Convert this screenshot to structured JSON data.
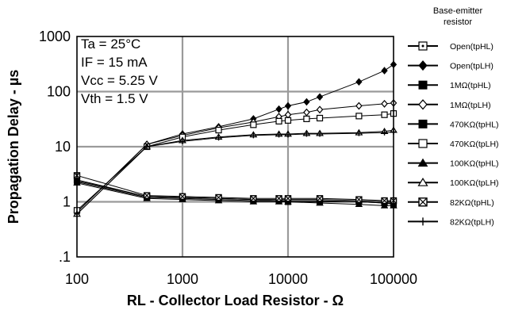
{
  "chart_data": {
    "type": "line",
    "title": "",
    "xlabel": "RL  -  Collector  Load  Resistor  -  Ω",
    "ylabel": "Propagation  Delay  -  µs",
    "x_scale": "log",
    "y_scale": "log",
    "xlim": [
      100,
      100000
    ],
    "ylim": [
      0.1,
      1000
    ],
    "x_ticks": [
      {
        "value": 100,
        "label": "100"
      },
      {
        "value": 1000,
        "label": "1000"
      },
      {
        "value": 10000,
        "label": "10000"
      },
      {
        "value": 100000,
        "label": "100000"
      }
    ],
    "y_ticks": [
      {
        "value": 0.1,
        "label": ".1"
      },
      {
        "value": 1,
        "label": "1"
      },
      {
        "value": 10,
        "label": "10"
      },
      {
        "value": 100,
        "label": "100"
      },
      {
        "value": 1000,
        "label": "1000"
      }
    ],
    "grid": true,
    "legend_position": "right",
    "legend_title": [
      "Base-emitter",
      "resistor"
    ],
    "annotations": [
      "Ta = 25°C",
      "IF = 15 mA",
      "Vcc = 5.25 V",
      "Vth = 1.5 V"
    ],
    "series": [
      {
        "name": "Open(tpHL)",
        "marker": "square-dot",
        "x": [
          100,
          460,
          1000,
          2200,
          4700,
          8200,
          10000,
          20000,
          47000,
          82000,
          100000
        ],
        "y": [
          2.5,
          1.25,
          1.2,
          1.15,
          1.1,
          1.1,
          1.1,
          1.1,
          1.05,
          1.0,
          1.0
        ]
      },
      {
        "name": "Open(tpLH)",
        "marker": "diamond-filled",
        "x": [
          100,
          460,
          1000,
          2200,
          4700,
          8200,
          10000,
          15000,
          20000,
          47000,
          82000,
          100000
        ],
        "y": [
          0.65,
          11,
          17,
          23,
          32,
          48,
          55,
          65,
          80,
          150,
          240,
          310
        ]
      },
      {
        "name": "1MΩ(tpHL)",
        "marker": "square-filled",
        "x": [
          100,
          460,
          1000,
          2200,
          4700,
          8200,
          10000,
          20000,
          47000,
          82000,
          100000
        ],
        "y": [
          2.4,
          1.25,
          1.2,
          1.15,
          1.1,
          1.05,
          1.05,
          1.05,
          1.0,
          0.95,
          0.95
        ]
      },
      {
        "name": "1MΩ(tpLH)",
        "marker": "diamond-open",
        "x": [
          100,
          460,
          1000,
          2200,
          4700,
          8200,
          10000,
          15000,
          20000,
          47000,
          82000,
          100000
        ],
        "y": [
          0.65,
          11,
          16,
          22,
          28,
          35,
          38,
          42,
          47,
          55,
          60,
          62
        ]
      },
      {
        "name": "470KΩ(tpHL)",
        "marker": "square-filled",
        "x": [
          100,
          460,
          1000,
          2200,
          4700,
          8200,
          10000,
          20000,
          47000,
          82000,
          100000
        ],
        "y": [
          2.3,
          1.2,
          1.15,
          1.1,
          1.05,
          1.05,
          1.0,
          1.0,
          1.0,
          0.95,
          0.9
        ]
      },
      {
        "name": "470KΩ(tpLH)",
        "marker": "square-open",
        "x": [
          100,
          460,
          1000,
          2200,
          4700,
          8200,
          10000,
          15000,
          20000,
          47000,
          82000,
          100000
        ],
        "y": [
          0.7,
          10,
          15,
          20,
          25,
          29,
          30,
          32,
          33,
          36,
          38,
          40
        ]
      },
      {
        "name": "100KΩ(tpHL)",
        "marker": "triangle-filled",
        "x": [
          100,
          460,
          1000,
          2200,
          4700,
          8200,
          10000,
          20000,
          47000,
          82000,
          100000
        ],
        "y": [
          2.2,
          1.15,
          1.1,
          1.05,
          1.0,
          1.0,
          1.0,
          0.95,
          0.9,
          0.85,
          0.85
        ]
      },
      {
        "name": "100KΩ(tpLH)",
        "marker": "triangle-open",
        "x": [
          100,
          460,
          1000,
          2200,
          4700,
          8200,
          10000,
          15000,
          20000,
          47000,
          82000,
          100000
        ],
        "y": [
          0.6,
          10,
          13,
          15,
          16.5,
          17,
          17,
          17.5,
          17.5,
          18,
          19,
          20
        ]
      },
      {
        "name": "82KΩ(tpHL)",
        "marker": "square-x",
        "x": [
          100,
          460,
          1000,
          2200,
          4700,
          8200,
          10000,
          20000,
          47000,
          82000,
          100000
        ],
        "y": [
          3.0,
          1.3,
          1.25,
          1.2,
          1.15,
          1.15,
          1.15,
          1.15,
          1.1,
          1.05,
          1.05
        ]
      },
      {
        "name": "82KΩ(tpLH)",
        "marker": "plus",
        "x": [
          100,
          460,
          1000,
          2200,
          4700,
          8200,
          10000,
          15000,
          20000,
          47000,
          82000,
          100000
        ],
        "y": [
          0.6,
          10,
          12.5,
          14.5,
          16,
          16.5,
          16.5,
          17,
          17,
          17.5,
          18,
          18.5
        ]
      }
    ]
  }
}
